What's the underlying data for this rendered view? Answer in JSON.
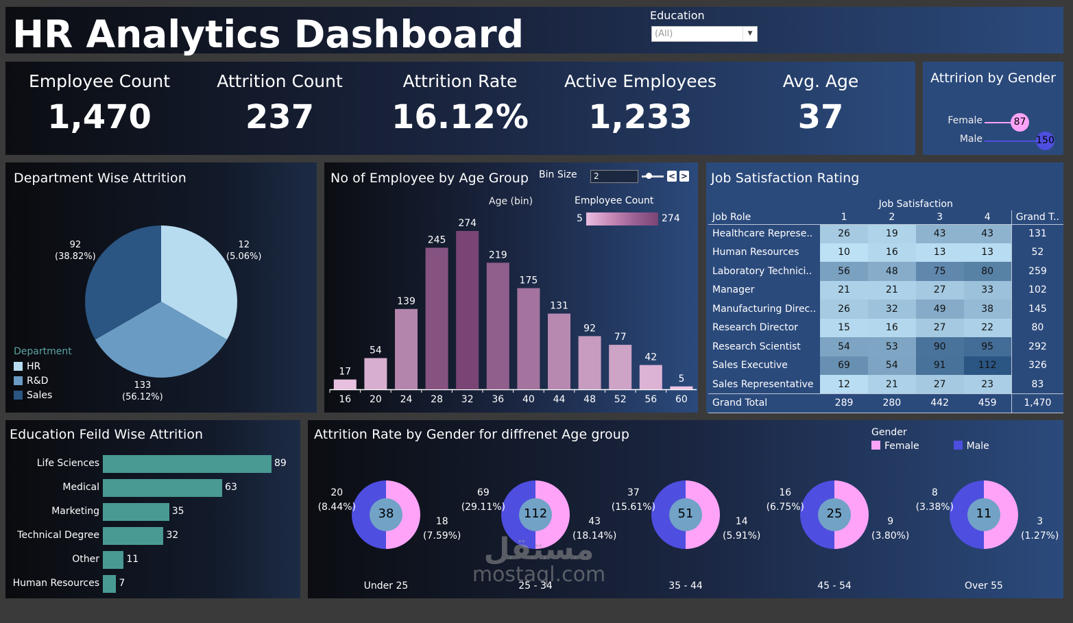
{
  "header": {
    "title": "HR Analytics Dashboard",
    "filter_label": "Education",
    "filter_value": "(All)"
  },
  "kpis": [
    {
      "label": "Employee Count",
      "value": "1,470"
    },
    {
      "label": "Attrition Count",
      "value": "237"
    },
    {
      "label": "Attrition Rate",
      "value": "16.12%"
    },
    {
      "label": "Active Employees",
      "value": "1,233"
    },
    {
      "label": "Avg. Age",
      "value": "37"
    }
  ],
  "gender_attrition": {
    "title": "Attririon by Gender",
    "items": [
      {
        "label": "Female",
        "value": 87,
        "color": "#ffa3f8"
      },
      {
        "label": "Male",
        "value": 150,
        "color": "#4e4ee0"
      }
    ]
  },
  "chart_data": [
    {
      "type": "pie",
      "title": "Department Wise Attrition",
      "legend_title": "Department",
      "legend_position": "bottom-left",
      "categories": [
        "HR",
        "R&D",
        "Sales"
      ],
      "values": [
        12,
        133,
        92
      ],
      "percent_labels": [
        "(5.06%)",
        "(56.12%)",
        "(38.82%)"
      ],
      "colors": [
        "#b7dcf0",
        "#6a9bc3",
        "#2b5583"
      ]
    },
    {
      "type": "bar",
      "title": "No of Employee by Age Group",
      "xlabel": "Age (bin)",
      "categories": [
        "16",
        "20",
        "24",
        "28",
        "32",
        "36",
        "40",
        "44",
        "48",
        "52",
        "56",
        "60"
      ],
      "values": [
        17,
        54,
        139,
        245,
        274,
        219,
        175,
        131,
        92,
        77,
        42,
        5
      ],
      "color_legend": {
        "title": "Employee Count",
        "min": 5,
        "max": 274,
        "min_color": "#ecc5e4",
        "max_color": "#7a4575"
      },
      "bin_size_label": "Bin Size",
      "bin_size": "2"
    },
    {
      "type": "heatmap",
      "title": "Job Satisfaction Rating",
      "column_group": "Job Satisfaction",
      "row_header": "Job Role",
      "columns": [
        "1",
        "2",
        "3",
        "4"
      ],
      "total_header": "Grand T..",
      "rows": [
        {
          "label": "Healthcare Represe..",
          "values": [
            26,
            19,
            43,
            43
          ],
          "total": "131"
        },
        {
          "label": "Human Resources",
          "values": [
            10,
            16,
            13,
            13
          ],
          "total": "52"
        },
        {
          "label": "Laboratory Technici..",
          "values": [
            56,
            48,
            75,
            80
          ],
          "total": "259"
        },
        {
          "label": "Manager",
          "values": [
            21,
            21,
            27,
            33
          ],
          "total": "102"
        },
        {
          "label": "Manufacturing Direc..",
          "values": [
            26,
            32,
            49,
            38
          ],
          "total": "145"
        },
        {
          "label": "Research Director",
          "values": [
            15,
            16,
            27,
            22
          ],
          "total": "80"
        },
        {
          "label": "Research Scientist",
          "values": [
            54,
            53,
            90,
            95
          ],
          "total": "292"
        },
        {
          "label": "Sales Executive",
          "values": [
            69,
            54,
            91,
            112
          ],
          "total": "326"
        },
        {
          "label": "Sales Representative",
          "values": [
            12,
            21,
            27,
            23
          ],
          "total": "83"
        }
      ],
      "grand_total": {
        "label": "Grand Total",
        "values": [
          "289",
          "280",
          "442",
          "459"
        ],
        "total": "1,470"
      }
    },
    {
      "type": "bar",
      "orientation": "horizontal",
      "title": "Education Feild Wise Attrition",
      "categories": [
        "Life Sciences",
        "Medical",
        "Marketing",
        "Technical Degree",
        "Other",
        "Human Resources"
      ],
      "values": [
        89,
        63,
        35,
        32,
        11,
        7
      ],
      "color": "#4a9a94"
    },
    {
      "type": "pie",
      "subtype": "donut",
      "title": "Attrition Rate by Gender for diffrenet Age group",
      "legend_title": "Gender",
      "legend_position": "top-right",
      "legend": [
        {
          "label": "Female",
          "color": "#ffa3f8"
        },
        {
          "label": "Male",
          "color": "#4e4ee0"
        }
      ],
      "groups": [
        {
          "label": "Under 25",
          "total": 38,
          "male": 20,
          "male_pct": "(8.44%)",
          "female": 18,
          "female_pct": "(7.59%)"
        },
        {
          "label": "25 - 34",
          "total": 112,
          "male": 69,
          "male_pct": "(29.11%)",
          "female": 43,
          "female_pct": "(18.14%)"
        },
        {
          "label": "35 - 44",
          "total": 51,
          "male": 37,
          "male_pct": "(15.61%)",
          "female": 14,
          "female_pct": "(5.91%)"
        },
        {
          "label": "45 - 54",
          "total": 25,
          "male": 16,
          "male_pct": "(6.75%)",
          "female": 9,
          "female_pct": "(3.80%)"
        },
        {
          "label": "Over 55",
          "total": 11,
          "male": 8,
          "male_pct": "(3.38%)",
          "female": 3,
          "female_pct": "(1.27%)"
        }
      ]
    }
  ],
  "watermark": {
    "arabic": "مستقل",
    "latin": "mostaql.com"
  }
}
